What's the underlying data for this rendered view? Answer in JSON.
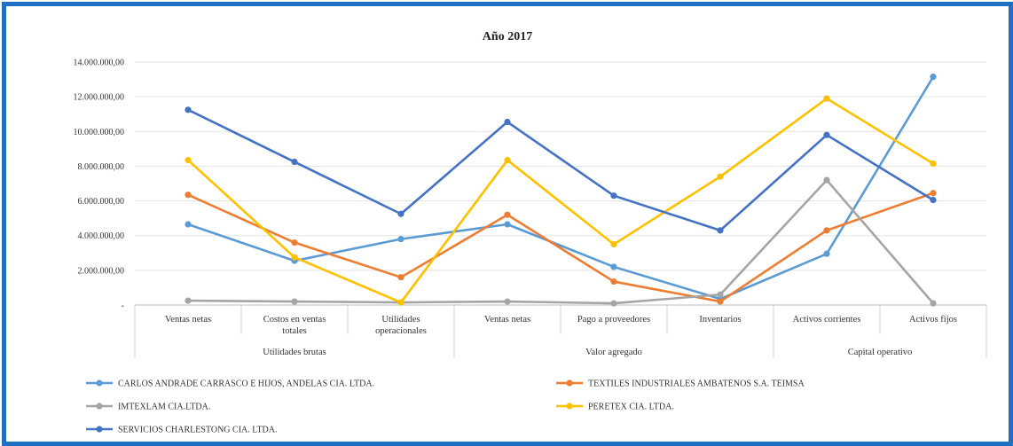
{
  "chart_data": {
    "type": "line",
    "title": "Año 2017",
    "ylim": [
      0,
      14000000
    ],
    "yticks": [
      0,
      2000000,
      4000000,
      6000000,
      8000000,
      10000000,
      12000000,
      14000000
    ],
    "ytick_labels": [
      "-",
      "2.000.000,00",
      "4.000.000,00",
      "6.000.000,00",
      "8.000.000,00",
      "10.000.000,00",
      "12.000.000,00",
      "14.000.000,00"
    ],
    "categories": [
      [
        "Ventas netas"
      ],
      [
        "Costos en ventas",
        "totales"
      ],
      [
        "Utilidades",
        "operacionales"
      ],
      [
        "Ventas netas"
      ],
      [
        "Pago a proveedores"
      ],
      [
        "Inventarios"
      ],
      [
        "Activos corrientes"
      ],
      [
        "Activos fijos"
      ]
    ],
    "groups": [
      {
        "label": "Utilidades brutas",
        "span": [
          0,
          2
        ]
      },
      {
        "label": "Valor agregado",
        "span": [
          3,
          5
        ]
      },
      {
        "label": "Capital operativo",
        "span": [
          6,
          7
        ]
      }
    ],
    "grid": true,
    "legend_position": "bottom",
    "series": [
      {
        "name": "CARLOS ANDRADE CARRASCO E HIJOS, ANDELAS CIA. LTDA.",
        "color": "#5b9bd5",
        "values": [
          4650000,
          2550000,
          3800000,
          4650000,
          2200000,
          350000,
          2950000,
          13150000
        ]
      },
      {
        "name": "TEXTILES INDUSTRIALES AMBATENOS S.A. TEIMSA",
        "color": "#ed7d31",
        "values": [
          6350000,
          3600000,
          1600000,
          5200000,
          1350000,
          200000,
          4300000,
          6450000
        ]
      },
      {
        "name": "IMTEXLAM CIA.LTDA.",
        "color": "#a5a5a5",
        "values": [
          250000,
          200000,
          150000,
          200000,
          100000,
          600000,
          7200000,
          100000
        ]
      },
      {
        "name": "PERETEX CIA. LTDA.",
        "color": "#ffc000",
        "values": [
          8350000,
          2750000,
          150000,
          8350000,
          3500000,
          7400000,
          11900000,
          8150000
        ]
      },
      {
        "name": "SERVICIOS CHARLESTONG CIA. LTDA.",
        "color": "#4472c4",
        "values": [
          11250000,
          8250000,
          5250000,
          10550000,
          6300000,
          4300000,
          9800000,
          6050000
        ]
      }
    ]
  }
}
